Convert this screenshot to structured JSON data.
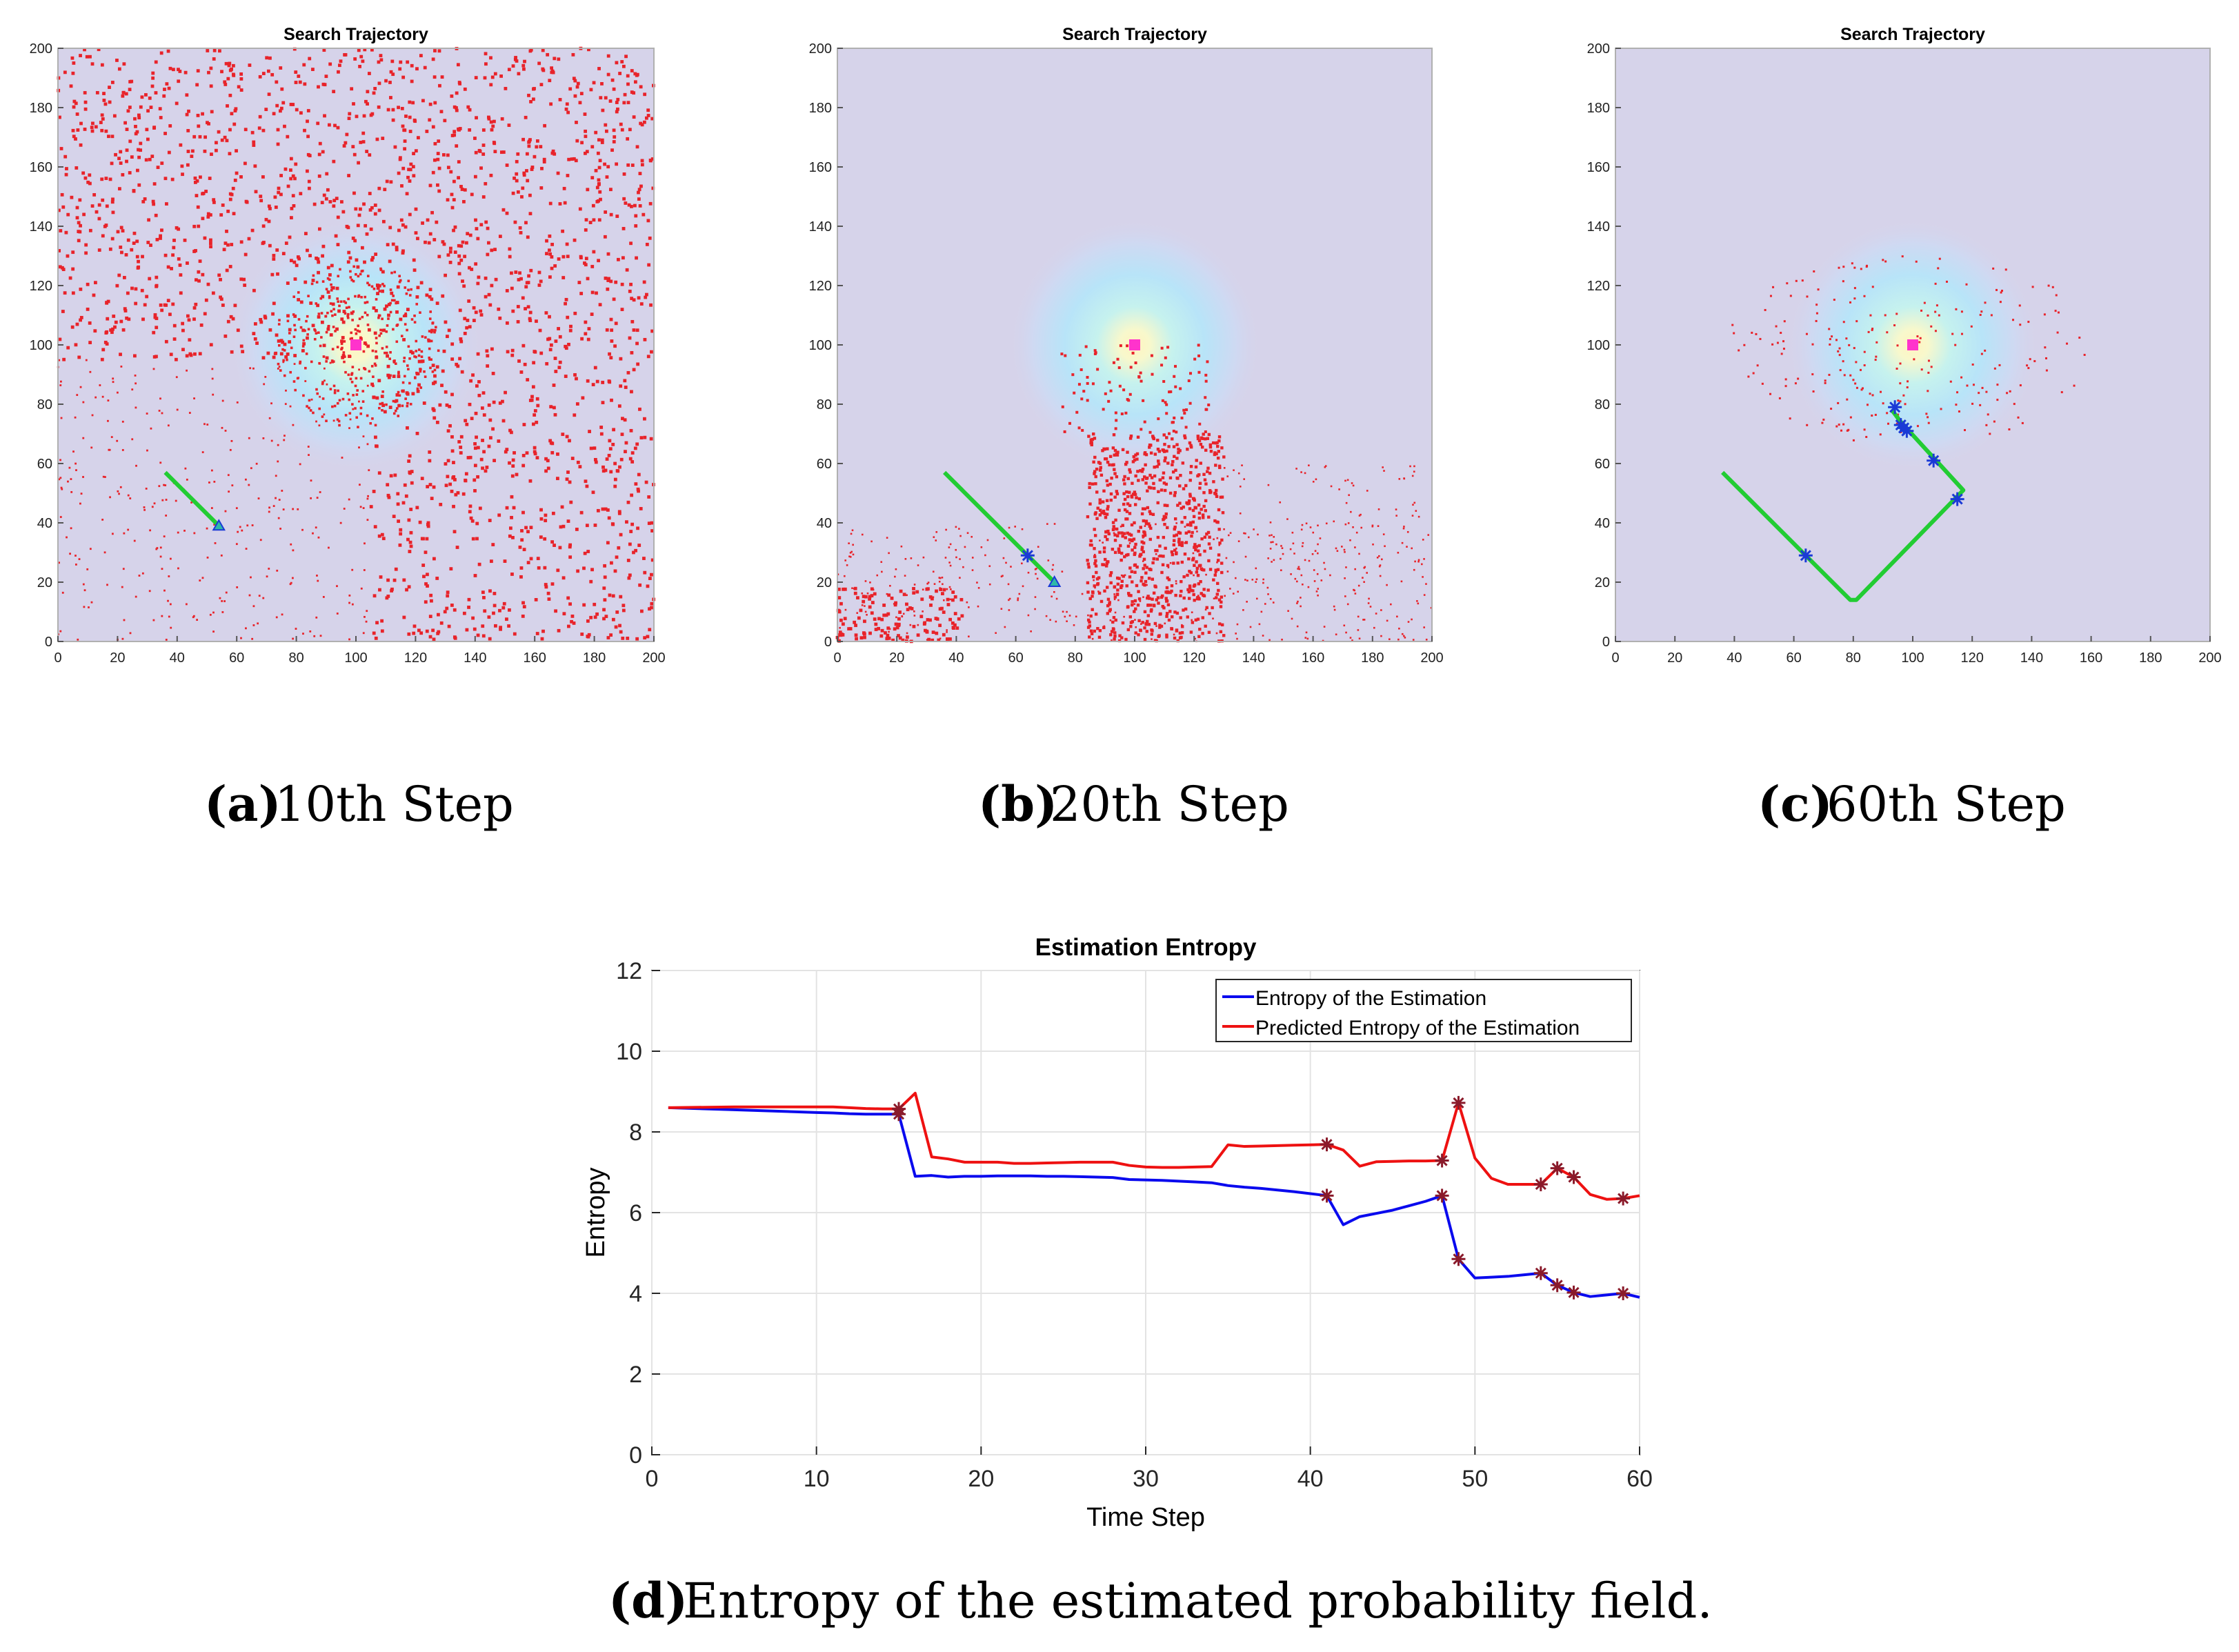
{
  "colors": {
    "field_background": "#d6d3ea",
    "particle": "#e8232a",
    "trajectory": "#22cc33",
    "source_marker": "#ff33cc",
    "measurement_marker": "#1a3ad6",
    "entropy_line": "#0a0aee",
    "predicted_line": "#ee1111",
    "star_marker": "#8a1a2a"
  },
  "panels": [
    {
      "id": "a",
      "title": "Search Trajectory",
      "caption_label": "(a)",
      "caption_text": "10th Step",
      "x_ticks": [
        "0",
        "20",
        "40",
        "60",
        "80",
        "100",
        "120",
        "140",
        "160",
        "180",
        "200"
      ],
      "y_ticks": [
        "0",
        "20",
        "40",
        "60",
        "80",
        "100",
        "120",
        "140",
        "160",
        "180",
        "200"
      ],
      "source": [
        100,
        100
      ],
      "trajectory": [
        [
          36,
          57
        ],
        [
          54,
          39
        ]
      ],
      "measurement_points": [],
      "end_marker": [
        54,
        39
      ],
      "particle_density": "high"
    },
    {
      "id": "b",
      "title": "Search Trajectory",
      "caption_label": "(b)",
      "caption_text": "20th Step",
      "x_ticks": [
        "0",
        "20",
        "40",
        "60",
        "80",
        "100",
        "120",
        "140",
        "160",
        "180",
        "200"
      ],
      "y_ticks": [
        "0",
        "20",
        "40",
        "60",
        "80",
        "100",
        "120",
        "140",
        "160",
        "180",
        "200"
      ],
      "source": [
        100,
        100
      ],
      "trajectory": [
        [
          36,
          57
        ],
        [
          73,
          20
        ]
      ],
      "measurement_points": [
        [
          64,
          29
        ]
      ],
      "end_marker": [
        73,
        20
      ],
      "particle_density": "medium"
    },
    {
      "id": "c",
      "title": "Search Trajectory",
      "caption_label": "(c)",
      "caption_text": "60th Step",
      "x_ticks": [
        "0",
        "20",
        "40",
        "60",
        "80",
        "100",
        "120",
        "140",
        "160",
        "180",
        "200"
      ],
      "y_ticks": [
        "0",
        "20",
        "40",
        "60",
        "80",
        "100",
        "120",
        "140",
        "160",
        "180",
        "200"
      ],
      "source": [
        100,
        100
      ],
      "trajectory": [
        [
          36,
          57
        ],
        [
          79,
          14
        ],
        [
          81,
          14
        ],
        [
          117,
          51
        ],
        [
          96,
          74
        ],
        [
          93,
          78
        ]
      ],
      "measurement_points": [
        [
          64,
          29
        ],
        [
          115,
          48
        ],
        [
          107,
          61
        ],
        [
          97,
          72
        ],
        [
          98,
          71
        ],
        [
          96,
          73
        ],
        [
          94,
          79
        ]
      ],
      "end_marker": null,
      "particle_density": "low"
    }
  ],
  "chart_data": {
    "type": "line",
    "title": "Estimation Entropy",
    "xlabel": "Time Step",
    "ylabel": "Entropy",
    "xlim": [
      0,
      60
    ],
    "ylim": [
      0,
      12
    ],
    "x_ticks": [
      "0",
      "10",
      "20",
      "30",
      "40",
      "50",
      "60"
    ],
    "y_ticks": [
      "0",
      "2",
      "4",
      "6",
      "8",
      "10",
      "12"
    ],
    "grid": true,
    "legend_position": "top-right",
    "caption_label": "(d)",
    "caption_text": "Entropy of the estimated probability field.",
    "series": [
      {
        "name": "Entropy of the Estimation",
        "color": "#0a0aee",
        "x": [
          1,
          5,
          10,
          11,
          12,
          13,
          14,
          15,
          16,
          17,
          18,
          19,
          20,
          21,
          22,
          23,
          24,
          25,
          26,
          27,
          28,
          29,
          30,
          31,
          32,
          33,
          34,
          35,
          36,
          37,
          38,
          39,
          40,
          41,
          42,
          43,
          44,
          45,
          46,
          47,
          48,
          49,
          50,
          51,
          52,
          53,
          54,
          55,
          56,
          57,
          58,
          59,
          60
        ],
        "values": [
          8.6,
          8.55,
          8.48,
          8.47,
          8.45,
          8.44,
          8.44,
          8.44,
          6.9,
          6.92,
          6.88,
          6.9,
          6.9,
          6.91,
          6.91,
          6.91,
          6.9,
          6.9,
          6.89,
          6.88,
          6.87,
          6.82,
          6.81,
          6.8,
          6.78,
          6.76,
          6.74,
          6.67,
          6.63,
          6.6,
          6.56,
          6.52,
          6.47,
          6.42,
          5.7,
          5.9,
          5.98,
          6.06,
          6.17,
          6.28,
          6.42,
          4.85,
          4.38,
          4.4,
          4.42,
          4.46,
          4.5,
          4.2,
          4.02,
          3.92,
          3.96,
          4.0,
          3.9
        ]
      },
      {
        "name": "Predicted Entropy of the Estimation",
        "color": "#ee1111",
        "x": [
          1,
          5,
          10,
          11,
          12,
          13,
          14,
          15,
          16,
          17,
          18,
          19,
          20,
          21,
          22,
          23,
          24,
          25,
          26,
          27,
          28,
          29,
          30,
          31,
          32,
          33,
          34,
          35,
          36,
          37,
          38,
          39,
          40,
          41,
          42,
          43,
          44,
          45,
          46,
          47,
          48,
          49,
          50,
          51,
          52,
          53,
          54,
          55,
          56,
          57,
          58,
          59,
          60
        ],
        "values": [
          8.6,
          8.62,
          8.62,
          8.62,
          8.6,
          8.58,
          8.57,
          8.57,
          8.96,
          7.38,
          7.33,
          7.25,
          7.25,
          7.25,
          7.22,
          7.22,
          7.23,
          7.24,
          7.25,
          7.25,
          7.25,
          7.17,
          7.13,
          7.12,
          7.12,
          7.13,
          7.14,
          7.68,
          7.64,
          7.65,
          7.66,
          7.67,
          7.68,
          7.69,
          7.55,
          7.15,
          7.26,
          7.27,
          7.28,
          7.28,
          7.29,
          8.72,
          7.35,
          6.85,
          6.7,
          6.7,
          6.7,
          7.1,
          6.88,
          6.45,
          6.33,
          6.35,
          6.42
        ]
      }
    ],
    "markers": {
      "x": [
        15,
        41,
        48,
        49,
        54,
        55,
        56,
        59
      ],
      "entropy": [
        8.44,
        6.42,
        6.42,
        4.85,
        4.5,
        4.2,
        4.02,
        4.0
      ],
      "predicted": [
        8.57,
        7.69,
        7.29,
        8.72,
        6.7,
        7.1,
        6.88,
        6.35
      ]
    }
  }
}
